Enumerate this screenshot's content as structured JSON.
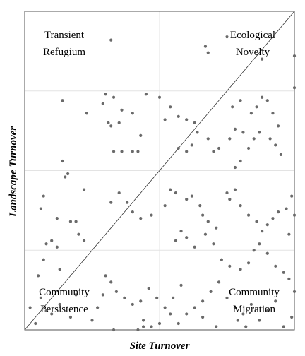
{
  "chart_data": {
    "type": "scatter",
    "xlabel": "Site Turnover",
    "ylabel": "Landscape Turnover",
    "xlim": [
      0,
      1
    ],
    "ylim": [
      0,
      1
    ],
    "grid": true,
    "reference_line": "y = x",
    "quadrant_labels": {
      "top_left": [
        "Transient",
        "Refugium"
      ],
      "top_right": [
        "Ecological",
        "Novelty"
      ],
      "bottom_left": [
        "Community",
        "Persistence"
      ],
      "bottom_right": [
        "Community",
        "Migration"
      ]
    },
    "points": [
      [
        0.32,
        0.91
      ],
      [
        0.75,
        0.92
      ],
      [
        0.68,
        0.87
      ],
      [
        0.67,
        0.89
      ],
      [
        0.88,
        0.85
      ],
      [
        1.0,
        0.86
      ],
      [
        0.14,
        0.72
      ],
      [
        0.23,
        0.68
      ],
      [
        0.3,
        0.74
      ],
      [
        0.31,
        0.65
      ],
      [
        0.32,
        0.64
      ],
      [
        0.33,
        0.73
      ],
      [
        0.35,
        0.65
      ],
      [
        0.36,
        0.69
      ],
      [
        0.4,
        0.68
      ],
      [
        0.45,
        0.74
      ],
      [
        0.43,
        0.61
      ],
      [
        0.42,
        0.56
      ],
      [
        0.4,
        0.56
      ],
      [
        0.36,
        0.56
      ],
      [
        0.33,
        0.56
      ],
      [
        0.29,
        0.71
      ],
      [
        0.5,
        0.73
      ],
      [
        0.52,
        0.66
      ],
      [
        0.54,
        0.7
      ],
      [
        0.57,
        0.67
      ],
      [
        0.6,
        0.66
      ],
      [
        0.63,
        0.65
      ],
      [
        0.64,
        0.62
      ],
      [
        0.62,
        0.58
      ],
      [
        0.6,
        0.56
      ],
      [
        0.57,
        0.57
      ],
      [
        0.68,
        0.6
      ],
      [
        0.7,
        0.56
      ],
      [
        0.72,
        0.57
      ],
      [
        0.77,
        0.7
      ],
      [
        0.8,
        0.72
      ],
      [
        0.84,
        0.68
      ],
      [
        0.86,
        0.7
      ],
      [
        0.88,
        0.73
      ],
      [
        0.9,
        0.72
      ],
      [
        0.92,
        0.68
      ],
      [
        0.94,
        0.64
      ],
      [
        0.93,
        0.58
      ],
      [
        0.91,
        0.6
      ],
      [
        0.87,
        0.62
      ],
      [
        0.85,
        0.6
      ],
      [
        0.83,
        0.57
      ],
      [
        0.81,
        0.62
      ],
      [
        0.78,
        0.63
      ],
      [
        0.76,
        0.6
      ],
      [
        0.8,
        0.53
      ],
      [
        0.78,
        0.51
      ],
      [
        0.95,
        0.55
      ],
      [
        1.0,
        0.76
      ],
      [
        0.07,
        0.42
      ],
      [
        0.06,
        0.38
      ],
      [
        0.15,
        0.48
      ],
      [
        0.16,
        0.49
      ],
      [
        0.14,
        0.53
      ],
      [
        0.22,
        0.44
      ],
      [
        0.22,
        0.28
      ],
      [
        0.2,
        0.3
      ],
      [
        0.19,
        0.34
      ],
      [
        0.17,
        0.34
      ],
      [
        0.08,
        0.27
      ],
      [
        0.12,
        0.26
      ],
      [
        0.1,
        0.28
      ],
      [
        0.07,
        0.22
      ],
      [
        0.13,
        0.19
      ],
      [
        0.05,
        0.17
      ],
      [
        0.32,
        0.4
      ],
      [
        0.35,
        0.43
      ],
      [
        0.38,
        0.4
      ],
      [
        0.4,
        0.37
      ],
      [
        0.43,
        0.35
      ],
      [
        0.47,
        0.36
      ],
      [
        0.52,
        0.39
      ],
      [
        0.54,
        0.44
      ],
      [
        0.56,
        0.43
      ],
      [
        0.6,
        0.41
      ],
      [
        0.62,
        0.42
      ],
      [
        0.65,
        0.39
      ],
      [
        0.66,
        0.36
      ],
      [
        0.68,
        0.34
      ],
      [
        0.71,
        0.32
      ],
      [
        0.75,
        0.43
      ],
      [
        0.78,
        0.44
      ],
      [
        0.76,
        0.41
      ],
      [
        0.8,
        0.39
      ],
      [
        0.83,
        0.36
      ],
      [
        0.86,
        0.34
      ],
      [
        0.88,
        0.31
      ],
      [
        0.9,
        0.33
      ],
      [
        0.92,
        0.35
      ],
      [
        0.94,
        0.37
      ],
      [
        0.97,
        0.38
      ],
      [
        0.99,
        0.42
      ],
      [
        1.0,
        0.36
      ],
      [
        0.98,
        0.3
      ],
      [
        0.56,
        0.28
      ],
      [
        0.58,
        0.31
      ],
      [
        0.6,
        0.29
      ],
      [
        0.63,
        0.26
      ],
      [
        0.67,
        0.3
      ],
      [
        0.7,
        0.27
      ],
      [
        0.73,
        0.22
      ],
      [
        0.76,
        0.2
      ],
      [
        0.8,
        0.19
      ],
      [
        0.83,
        0.21
      ],
      [
        0.85,
        0.25
      ],
      [
        0.87,
        0.27
      ],
      [
        0.9,
        0.24
      ],
      [
        0.93,
        0.2
      ],
      [
        0.96,
        0.18
      ],
      [
        0.98,
        0.16
      ],
      [
        1.0,
        0.12
      ],
      [
        0.3,
        0.17
      ],
      [
        0.32,
        0.15
      ],
      [
        0.34,
        0.12
      ],
      [
        0.37,
        0.1
      ],
      [
        0.4,
        0.08
      ],
      [
        0.43,
        0.09
      ],
      [
        0.46,
        0.13
      ],
      [
        0.49,
        0.1
      ],
      [
        0.52,
        0.07
      ],
      [
        0.55,
        0.1
      ],
      [
        0.58,
        0.14
      ],
      [
        0.6,
        0.05
      ],
      [
        0.63,
        0.07
      ],
      [
        0.66,
        0.09
      ],
      [
        0.69,
        0.12
      ],
      [
        0.72,
        0.15
      ],
      [
        0.75,
        0.1
      ],
      [
        0.78,
        0.07
      ],
      [
        0.81,
        0.05
      ],
      [
        0.84,
        0.08
      ],
      [
        0.87,
        0.03
      ],
      [
        0.9,
        0.06
      ],
      [
        0.93,
        0.09
      ],
      [
        0.25,
        0.03
      ],
      [
        0.27,
        0.07
      ],
      [
        0.29,
        0.11
      ],
      [
        0.19,
        0.11
      ],
      [
        0.17,
        0.04
      ],
      [
        0.13,
        0.08
      ],
      [
        0.1,
        0.05
      ],
      [
        0.08,
        0.06
      ],
      [
        0.06,
        0.1
      ],
      [
        0.04,
        0.02
      ],
      [
        0.02,
        0.07
      ],
      [
        0.44,
        0.03
      ],
      [
        0.47,
        0.01
      ],
      [
        0.5,
        0.02
      ],
      [
        0.54,
        0.05
      ],
      [
        0.57,
        0.02
      ],
      [
        0.66,
        0.04
      ],
      [
        0.71,
        0.01
      ],
      [
        0.79,
        0.03
      ],
      [
        0.82,
        0.01
      ],
      [
        0.96,
        0.01
      ],
      [
        0.99,
        0.04
      ],
      [
        0.12,
        0.35
      ],
      [
        0.33,
        0.0
      ],
      [
        0.42,
        0.0
      ],
      [
        0.44,
        0.01
      ]
    ]
  }
}
